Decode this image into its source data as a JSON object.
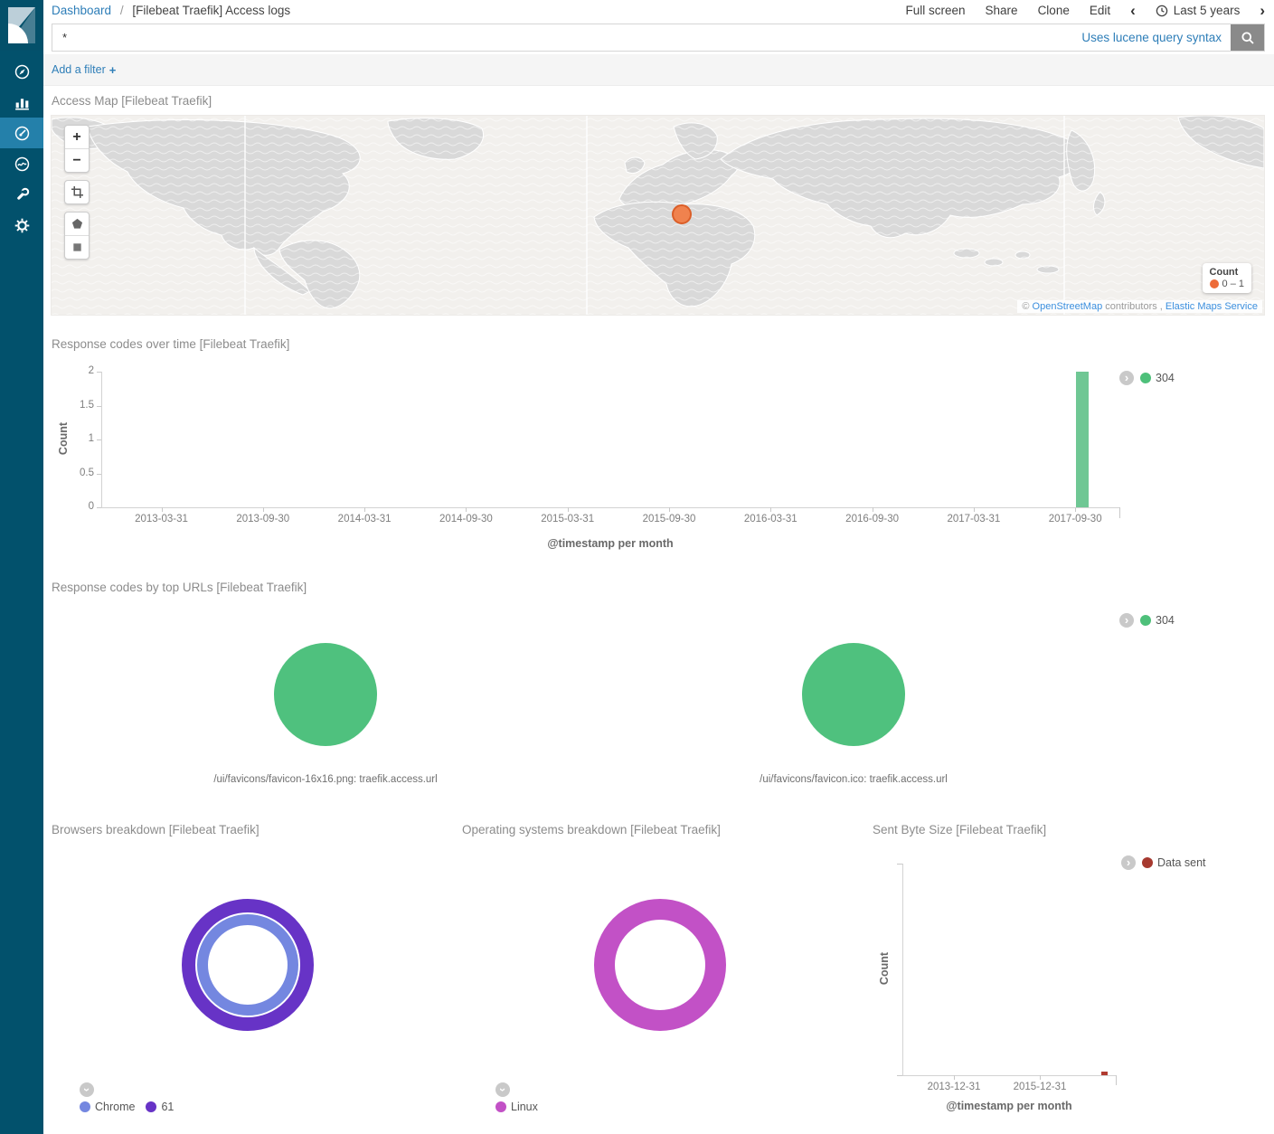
{
  "header": {
    "breadcrumb": {
      "root": "Dashboard",
      "separator": "/",
      "current": "[Filebeat Traefik] Access logs"
    },
    "actions": {
      "full_screen": "Full screen",
      "share": "Share",
      "clone": "Clone",
      "edit": "Edit"
    },
    "time_picker": {
      "prev": "‹",
      "label": "Last 5 years",
      "next": "›"
    }
  },
  "query_bar": {
    "value": "*",
    "hint": "Uses lucene query syntax"
  },
  "filter_bar": {
    "add_filter": "Add a filter",
    "plus": "+"
  },
  "sidebar": {
    "items": [
      {
        "id": "discover"
      },
      {
        "id": "visualize"
      },
      {
        "id": "dashboard",
        "active": true
      },
      {
        "id": "timelion"
      },
      {
        "id": "dev-tools"
      },
      {
        "id": "management"
      }
    ]
  },
  "map_panel": {
    "title": "Access Map [Filebeat Traefik]",
    "controls": {
      "zoom_in": "+",
      "zoom_out": "−"
    },
    "marker": {
      "color": "#F0824E",
      "border_color": "#DB5E28"
    },
    "legend": {
      "title": "Count",
      "range": "0 – 1",
      "marker_color": "#ED6B38"
    },
    "attribution": {
      "prefix": "© ",
      "osm_link": "OpenStreetMap",
      "middle": " contributors , ",
      "elastic_link": "Elastic Maps Service"
    }
  },
  "chart_data": [
    {
      "id": "response_over_time",
      "type": "bar",
      "title": "Response codes over time [Filebeat Traefik]",
      "ylabel": "Count",
      "xlabel": "@timestamp per month",
      "ylim": [
        0,
        2
      ],
      "y_ticks": [
        "0",
        "0.5",
        "1",
        "1.5",
        "2"
      ],
      "categories": [
        "2013-03-31",
        "2013-09-30",
        "2014-03-31",
        "2014-09-30",
        "2015-03-31",
        "2015-09-30",
        "2016-03-31",
        "2016-09-30",
        "2017-03-31",
        "2017-09-30"
      ],
      "series": [
        {
          "name": "304",
          "color": "#6FC794",
          "values": [
            0,
            0,
            0,
            0,
            0,
            0,
            0,
            0,
            0,
            2
          ]
        }
      ],
      "legend": [
        {
          "label": "304",
          "color": "#4EC07A"
        }
      ]
    },
    {
      "id": "top_urls",
      "type": "pie",
      "title": "Response codes by top URLs [Filebeat Traefik]",
      "pies": [
        {
          "caption": "/ui/favicons/favicon-16x16.png: traefik.access.url",
          "slices": [
            {
              "label": "304",
              "value": 100,
              "color": "#4FC17E"
            }
          ]
        },
        {
          "caption": "/ui/favicons/favicon.ico: traefik.access.url",
          "slices": [
            {
              "label": "304",
              "value": 100,
              "color": "#4FC17E"
            }
          ]
        }
      ],
      "legend": [
        {
          "label": "304",
          "color": "#4EC07A"
        }
      ]
    },
    {
      "id": "browsers",
      "type": "donut",
      "title": "Browsers breakdown [Filebeat Traefik]",
      "rings": {
        "inner": [
          {
            "label": "Chrome",
            "value": 100,
            "color": "#7487E0"
          }
        ],
        "outer": [
          {
            "label": "61",
            "value": 100,
            "color": "#6733C6"
          }
        ]
      },
      "legend": [
        {
          "label": "Chrome",
          "color": "#7487E0"
        },
        {
          "label": "61",
          "color": "#6733C6"
        }
      ]
    },
    {
      "id": "os",
      "type": "donut",
      "title": "Operating systems breakdown [Filebeat Traefik]",
      "rings": {
        "outer": [
          {
            "label": "Linux",
            "value": 100,
            "color": "#C251C6"
          }
        ]
      },
      "legend": [
        {
          "label": "Linux",
          "color": "#C251C6"
        }
      ]
    },
    {
      "id": "sent_bytes",
      "type": "bar",
      "title": "Sent Byte Size [Filebeat Traefik]",
      "ylabel": "Count",
      "xlabel": "@timestamp per month",
      "x_ticks": [
        "2013-12-31",
        "2015-12-31"
      ],
      "tiny_bar": {
        "color": "#B03A30",
        "near_x": "2017"
      },
      "legend": [
        {
          "label": "Data sent",
          "color": "#A6392F"
        }
      ]
    }
  ]
}
